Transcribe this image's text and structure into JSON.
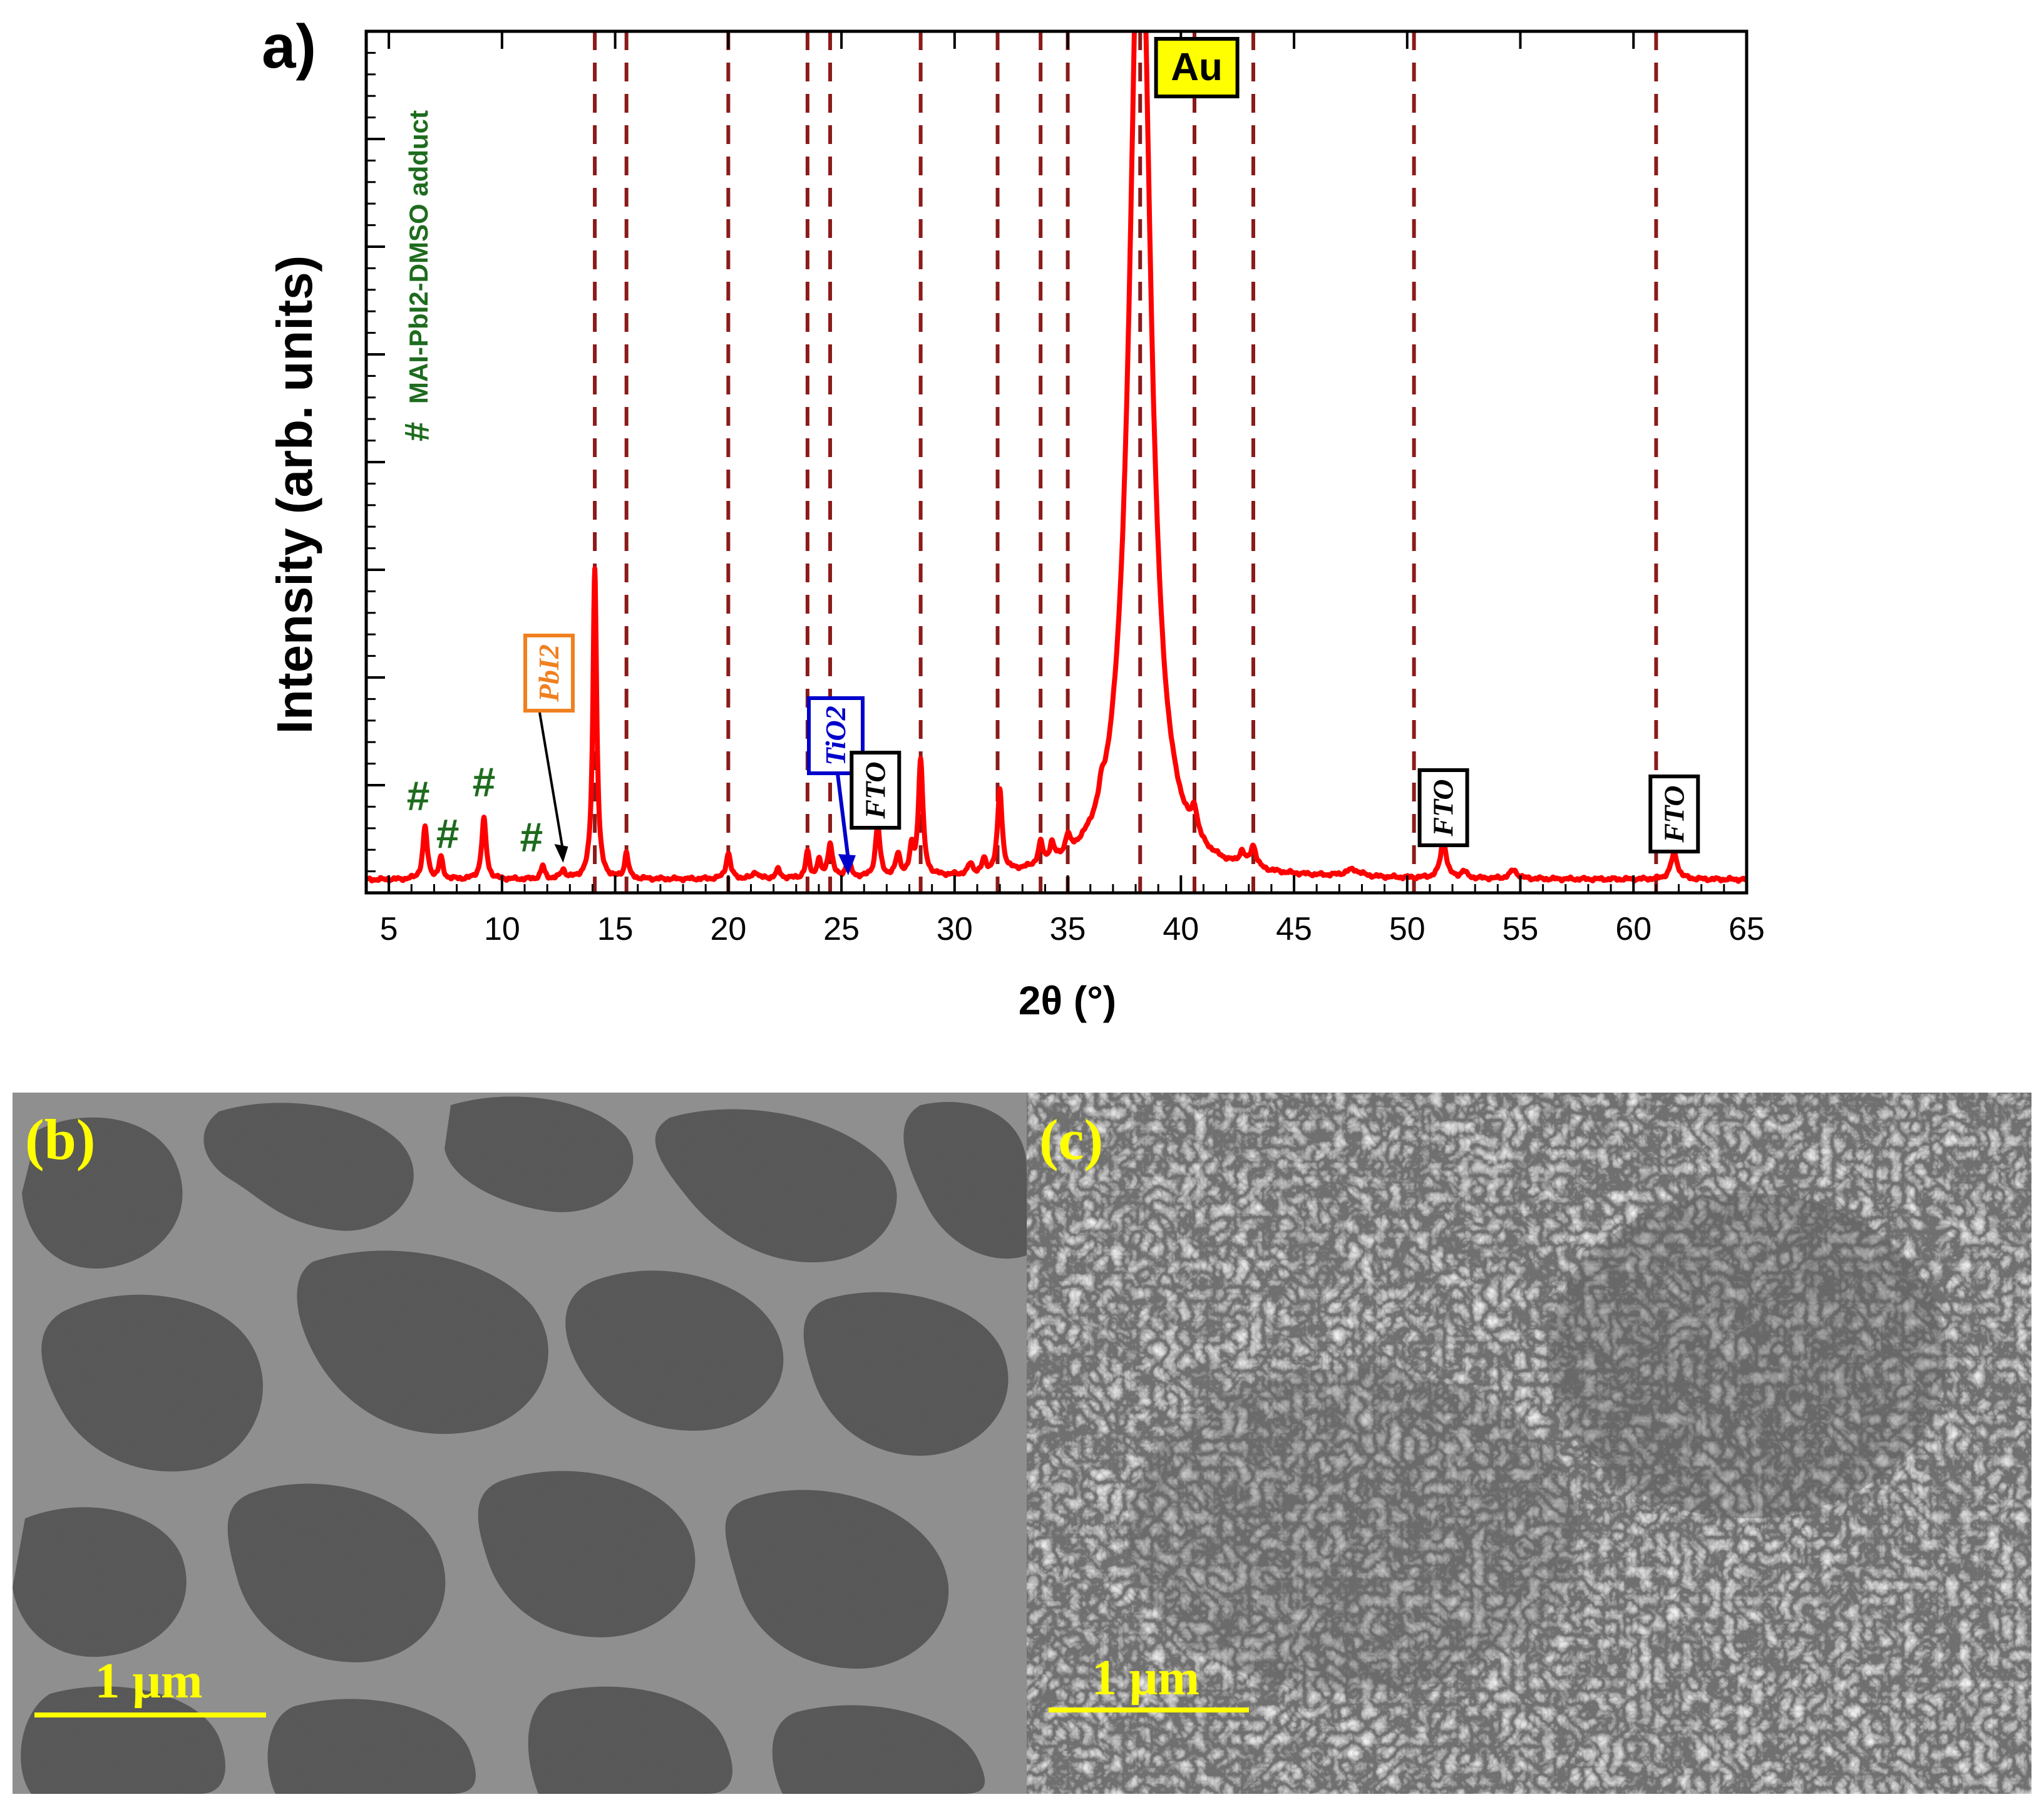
{
  "panel_a": {
    "label": "a)",
    "legend_symbol": "#",
    "legend_text": "MAI-PbI2-DMSO adduct",
    "colors": {
      "pattern": "#ff0000",
      "reference_lines": "#8b1a1a",
      "adduct": "#1e6b1e",
      "pbi2": "#f08020",
      "tio2": "#0000cc",
      "au_box": "#ffff00"
    }
  },
  "chart_data": {
    "type": "line",
    "xlabel": "2θ (°)",
    "ylabel": "Intensity (arb. units)",
    "xlim": [
      4,
      65
    ],
    "ylim": [
      0,
      100
    ],
    "xticks": [
      5,
      10,
      15,
      20,
      25,
      30,
      35,
      40,
      45,
      50,
      55,
      60,
      65
    ],
    "tick_labels": [
      "5",
      "10",
      "15",
      "20",
      "25",
      "30",
      "35",
      "40",
      "45",
      "50",
      "55",
      "60",
      "65"
    ],
    "y_ticks_labeled": false,
    "grid": false,
    "baseline": 1.5,
    "peaks": [
      [
        6.6,
        6.0,
        0.12
      ],
      [
        7.3,
        2.5,
        0.1
      ],
      [
        9.2,
        7.0,
        0.12
      ],
      [
        11.8,
        1.5,
        0.1
      ],
      [
        12.7,
        1.0,
        0.12
      ],
      [
        14.1,
        36.0,
        0.1
      ],
      [
        15.5,
        3.0,
        0.1
      ],
      [
        20.0,
        3.0,
        0.12
      ],
      [
        21.2,
        0.8,
        0.12
      ],
      [
        22.2,
        1.0,
        0.12
      ],
      [
        23.5,
        3.0,
        0.1
      ],
      [
        24.0,
        2.0,
        0.1
      ],
      [
        24.5,
        4.0,
        0.12
      ],
      [
        25.3,
        2.0,
        0.12
      ],
      [
        26.6,
        6.0,
        0.12
      ],
      [
        27.5,
        2.5,
        0.12
      ],
      [
        28.1,
        3.0,
        0.1
      ],
      [
        28.5,
        13.5,
        0.12
      ],
      [
        30.7,
        1.2,
        0.12
      ],
      [
        31.3,
        1.5,
        0.1
      ],
      [
        32.0,
        9.5,
        0.12
      ],
      [
        33.8,
        2.5,
        0.12
      ],
      [
        34.3,
        2.0,
        0.12
      ],
      [
        35.0,
        2.0,
        0.12
      ],
      [
        36.5,
        1.5,
        0.12
      ],
      [
        38.2,
        120.0,
        0.55
      ],
      [
        40.6,
        3.0,
        0.15
      ],
      [
        42.7,
        1.5,
        0.15
      ],
      [
        43.2,
        2.5,
        0.15
      ],
      [
        47.6,
        0.8,
        0.4
      ],
      [
        51.6,
        4.5,
        0.15
      ],
      [
        52.5,
        0.8,
        0.15
      ],
      [
        54.7,
        1.0,
        0.2
      ],
      [
        61.8,
        3.0,
        0.18
      ]
    ],
    "reference_lines_x": [
      14.1,
      15.5,
      20.0,
      23.5,
      24.5,
      28.5,
      31.9,
      33.8,
      35.0,
      38.2,
      40.6,
      43.2,
      50.3,
      61.0
    ],
    "annotations": {
      "adduct_marks": [
        {
          "text": "#",
          "x": 6.3,
          "y": 9.6
        },
        {
          "text": "#",
          "x": 7.6,
          "y": 5.2
        },
        {
          "text": "#",
          "x": 9.2,
          "y": 11.2
        },
        {
          "text": "#",
          "x": 11.3,
          "y": 4.8
        }
      ],
      "pbi2": {
        "text": "PbI2",
        "arrow_to_x": 12.7
      },
      "tio2": {
        "text": "TiO2",
        "arrow_to_x": 25.3
      },
      "fto": [
        {
          "text": "FTO",
          "x": 26.5
        },
        {
          "text": "FTO",
          "x": 51.6
        },
        {
          "text": "FTO",
          "x": 61.8
        }
      ],
      "au": {
        "text": "Au",
        "x": 40.7
      }
    }
  },
  "panel_b": {
    "label": "(b)",
    "scale_text": "1 μm"
  },
  "panel_c": {
    "label": "(c)",
    "scale_text": "1 μm"
  }
}
